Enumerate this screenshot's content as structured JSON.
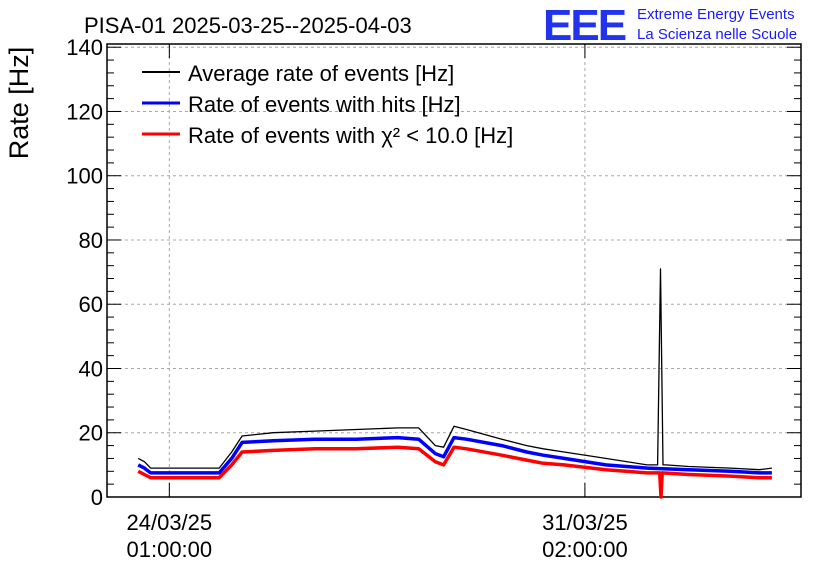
{
  "header": {
    "title": "PISA-01 2025-03-25--2025-04-03",
    "logo_text": "EEE",
    "logo_line1": "Extreme Energy Events",
    "logo_line2": "La Scienza nelle Scuole"
  },
  "chart_data": {
    "type": "line",
    "title": "PISA-01 2025-03-25--2025-04-03",
    "xlabel": "",
    "ylabel": "Rate [Hz]",
    "xlim": [
      -1.5,
      15.2
    ],
    "ylim": [
      0,
      141
    ],
    "grid": true,
    "legend_position": "top-left",
    "x_units": "days since 24/03/25 01:00:00",
    "x_tick_values": [
      0,
      10
    ],
    "x_tick_labels": [
      {
        "date": "24/03/25",
        "time": "01:00:00"
      },
      {
        "date": "31/03/25",
        "time": "02:00:00"
      }
    ],
    "y_tick_values": [
      0,
      20,
      40,
      60,
      80,
      100,
      120,
      140
    ],
    "y_tick_labels": [
      "0",
      "20",
      "40",
      "60",
      "80",
      "100",
      "120",
      "140"
    ],
    "legend": [
      {
        "label": "Average rate of events [Hz]",
        "color": "#000000"
      },
      {
        "label": "Rate of events with hits [Hz]",
        "color": "#0000ff"
      },
      {
        "label": "Rate of events with χ² < 10.0 [Hz]",
        "color": "#ff0000"
      }
    ],
    "series": [
      {
        "name": "Average rate of events [Hz]",
        "color": "#000000",
        "x": [
          -0.75,
          -0.6,
          -0.45,
          1.2,
          1.5,
          1.75,
          2.5,
          3.5,
          4.5,
          5.5,
          6.0,
          6.4,
          6.6,
          6.85,
          7.15,
          8.0,
          8.6,
          9.0,
          9.5,
          10.5,
          11.5,
          11.75,
          11.82,
          11.88,
          11.95,
          12.5,
          13.5,
          14.2,
          14.5
        ],
        "y": [
          12,
          11,
          9,
          9,
          14,
          19,
          20,
          20.5,
          21,
          21.5,
          21.5,
          16,
          15.5,
          22,
          21,
          18,
          16,
          15,
          14,
          12,
          10,
          10,
          71,
          10,
          10,
          9.5,
          9,
          8.5,
          9
        ]
      },
      {
        "name": "Rate of events with hits [Hz]",
        "color": "#0000ff",
        "x": [
          -0.75,
          -0.6,
          -0.45,
          1.2,
          1.5,
          1.75,
          2.5,
          3.5,
          4.5,
          5.5,
          6.0,
          6.4,
          6.6,
          6.85,
          7.15,
          8.0,
          8.6,
          9.0,
          9.5,
          10.5,
          11.5,
          12.5,
          13.5,
          14.2,
          14.5
        ],
        "y": [
          10,
          9,
          7.5,
          7.5,
          12,
          17,
          17.5,
          18,
          18,
          18.5,
          18,
          13.5,
          12.5,
          18.5,
          18,
          16,
          14,
          13,
          12,
          10,
          9,
          8.5,
          8,
          7.5,
          7.5
        ]
      },
      {
        "name": "Rate of events with χ² < 10.0 [Hz]",
        "color": "#ff0000",
        "x": [
          -0.75,
          -0.6,
          -0.45,
          1.2,
          1.5,
          1.75,
          2.5,
          3.5,
          4.5,
          5.5,
          6.0,
          6.4,
          6.6,
          6.85,
          7.15,
          8.0,
          8.6,
          9.0,
          9.5,
          10.5,
          11.5,
          11.8,
          11.83,
          11.86,
          12.5,
          13.5,
          14.2,
          14.5
        ],
        "y": [
          8,
          7,
          6,
          6,
          10,
          14,
          14.5,
          15,
          15,
          15.5,
          15,
          11,
          10,
          15.5,
          15,
          13,
          11.5,
          10.5,
          10,
          8.5,
          7.5,
          7.5,
          0,
          7.5,
          7,
          6.5,
          6,
          6
        ]
      }
    ]
  }
}
